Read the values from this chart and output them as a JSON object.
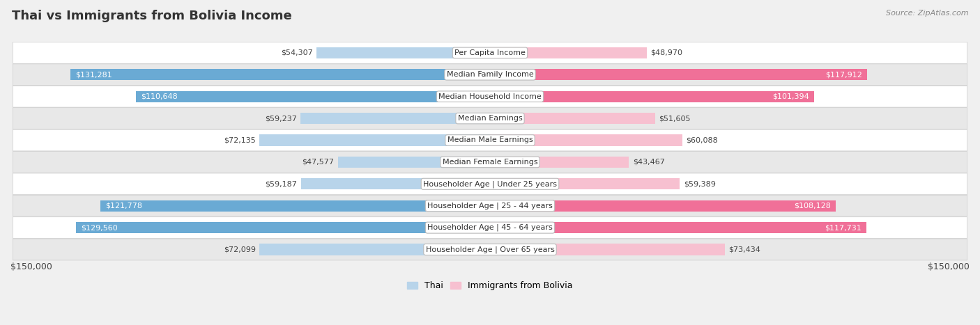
{
  "title": "Thai vs Immigrants from Bolivia Income",
  "source": "Source: ZipAtlas.com",
  "categories": [
    "Per Capita Income",
    "Median Family Income",
    "Median Household Income",
    "Median Earnings",
    "Median Male Earnings",
    "Median Female Earnings",
    "Householder Age | Under 25 years",
    "Householder Age | 25 - 44 years",
    "Householder Age | 45 - 64 years",
    "Householder Age | Over 65 years"
  ],
  "thai_values": [
    54307,
    131281,
    110648,
    59237,
    72135,
    47577,
    59187,
    121778,
    129560,
    72099
  ],
  "bolivia_values": [
    48970,
    117912,
    101394,
    51605,
    60088,
    43467,
    59389,
    108128,
    117731,
    73434
  ],
  "thai_labels": [
    "$54,307",
    "$131,281",
    "$110,648",
    "$59,237",
    "$72,135",
    "$47,577",
    "$59,187",
    "$121,778",
    "$129,560",
    "$72,099"
  ],
  "bolivia_labels": [
    "$48,970",
    "$117,912",
    "$101,394",
    "$51,605",
    "$60,088",
    "$43,467",
    "$59,389",
    "$108,128",
    "$117,731",
    "$73,434"
  ],
  "thai_color_light": "#b8d4ea",
  "thai_color_dark": "#6aaad4",
  "bolivia_color_light": "#f7c0d0",
  "bolivia_color_dark": "#f07098",
  "thai_inside_threshold": 90000,
  "bolivia_inside_threshold": 90000,
  "max_value": 150000,
  "background_color": "#f0f0f0",
  "row_bg_even": "#ffffff",
  "row_bg_odd": "#e8e8e8",
  "legend_thai": "Thai",
  "legend_bolivia": "Immigrants from Bolivia",
  "xlabel_left": "$150,000",
  "xlabel_right": "$150,000",
  "title_fontsize": 13,
  "label_fontsize": 8,
  "cat_fontsize": 8
}
